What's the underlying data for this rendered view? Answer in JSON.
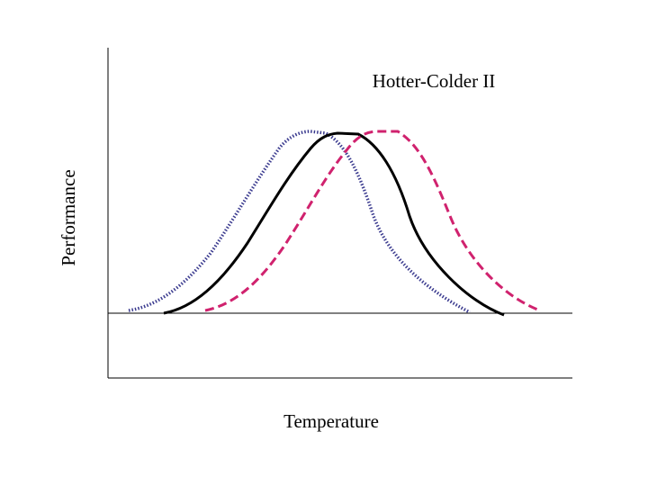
{
  "title": "Hotter-Colder II",
  "y_axis_label": "Performance",
  "x_axis_label": "Temperature"
}
